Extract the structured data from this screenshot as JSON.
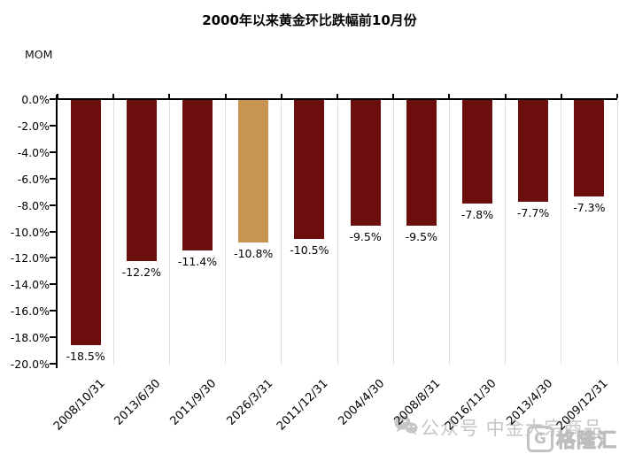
{
  "chart_data": {
    "type": "bar",
    "title": "2000年以来黄金环比跌幅前10月份",
    "ylabel": "MOM",
    "xlabel": "",
    "categories": [
      "2008/10/31",
      "2013/6/30",
      "2011/9/30",
      "2026/3/31",
      "2011/12/31",
      "2004/4/30",
      "2008/8/31",
      "2016/11/30",
      "2013/4/30",
      "2009/12/31"
    ],
    "values": [
      -18.5,
      -12.2,
      -11.4,
      -10.8,
      -10.5,
      -9.5,
      -9.5,
      -7.8,
      -7.7,
      -7.3
    ],
    "value_labels": [
      "-18.5%",
      "-12.2%",
      "-11.4%",
      "-10.8%",
      "-10.5%",
      "-9.5%",
      "-9.5%",
      "-7.8%",
      "-7.7%",
      "-7.3%"
    ],
    "y_tick_labels": [
      "0.0%",
      "-2.0%",
      "-4.0%",
      "-6.0%",
      "-8.0%",
      "-10.0%",
      "-12.0%",
      "-14.0%",
      "-16.0%",
      "-18.0%",
      "-20.0%"
    ],
    "ylim": [
      -20,
      0
    ],
    "legend": "none",
    "grid": "light vertical separators between categories",
    "bar_color": "#6d0e0e",
    "highlight_index": 3,
    "highlight_color": "#c7954f"
  },
  "watermark": {
    "wechat_icon": "wechat-icon",
    "text": "公众号 中金大宗商品",
    "logo_letter": "G",
    "logo_text": "格隆汇",
    "color": "#c6c6c6"
  }
}
